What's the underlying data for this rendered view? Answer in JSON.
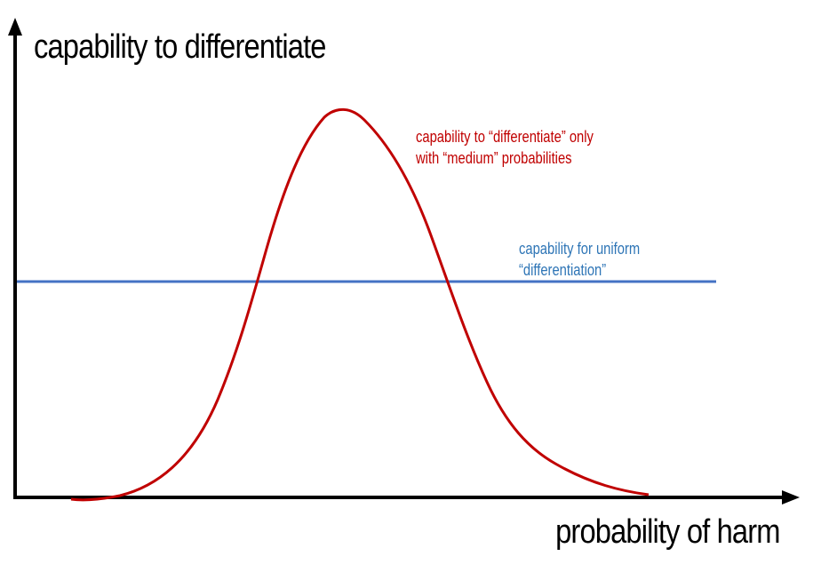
{
  "axes": {
    "y_title": "capability to differentiate",
    "x_title": "probability of harm"
  },
  "curves": {
    "bell": {
      "label_lines": [
        "capability to “differentiate” only",
        "with “medium” probabilities"
      ],
      "color": "#c00000"
    },
    "uniform": {
      "label_lines": [
        "capability for uniform",
        "“differentiation”"
      ],
      "color": "#4472c4"
    }
  },
  "colors": {
    "axis": "#000000",
    "bell_label": "#c00000",
    "uniform_label": "#2e75b6"
  }
}
